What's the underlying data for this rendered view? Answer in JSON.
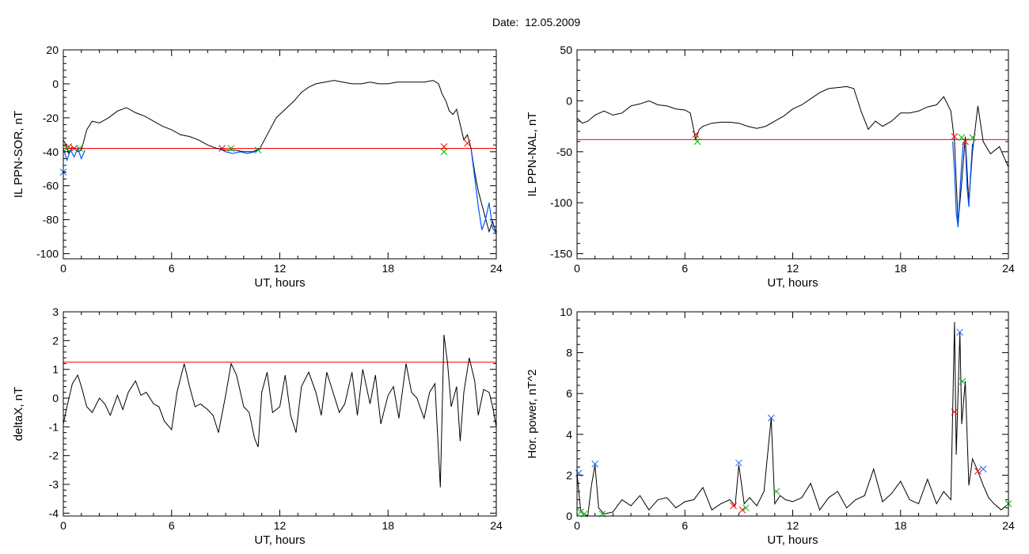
{
  "figure": {
    "title": "Date:  12.05.2009"
  },
  "colors": {
    "axis": "#000000",
    "trace": "#000000",
    "threshold": "#ff0000",
    "highlight": "#0055ff",
    "marker_red": "#ff0000",
    "marker_green": "#00bb00",
    "marker_blue": "#1a66ff"
  },
  "chart_data": [
    {
      "id": "ppn-sor",
      "type": "line",
      "title": "",
      "xlabel": "UT, hours",
      "ylabel": "IL PPN-SOR, nT",
      "xlim": [
        0,
        24
      ],
      "ylim": [
        -103,
        20
      ],
      "xticks": [
        0,
        6,
        12,
        18,
        24
      ],
      "yticks": [
        20,
        0,
        -20,
        -40,
        -60,
        -80,
        -100
      ],
      "grid": false,
      "threshold": -38,
      "series": [
        {
          "x": [
            0,
            0.15,
            0.3,
            0.5,
            0.8,
            1.0,
            1.3,
            1.6,
            2.0,
            2.5,
            3.0,
            3.5,
            4.0,
            4.5,
            5.0,
            5.5,
            6.0,
            6.5,
            7.0,
            7.5,
            8.0,
            8.5,
            9.0,
            9.5,
            10.0,
            10.5,
            10.9,
            11.3,
            11.8,
            12.3,
            12.8,
            13.2,
            13.6,
            14.0,
            14.5,
            15.0,
            15.5,
            16.0,
            16.5,
            17.0,
            17.5,
            18.0,
            18.5,
            19.0,
            19.5,
            20.0,
            20.5,
            20.8,
            21.0,
            21.2,
            21.4,
            21.6,
            21.8,
            22.0,
            22.2,
            22.4,
            22.6,
            22.8,
            23.0,
            23.3,
            23.6,
            23.8,
            24.0
          ],
          "y": [
            -33,
            -36,
            -41,
            -37,
            -40,
            -39,
            -27,
            -22,
            -23,
            -20,
            -16,
            -14,
            -17,
            -19,
            -22,
            -25,
            -27,
            -30,
            -31,
            -33,
            -36,
            -38,
            -39,
            -39,
            -40,
            -40,
            -38,
            -30,
            -20,
            -15,
            -10,
            -5,
            -2,
            0,
            1,
            2,
            1,
            0,
            0,
            1,
            0,
            0,
            1,
            1,
            1,
            1,
            2,
            0,
            -6,
            -10,
            -16,
            -18,
            -15,
            -24,
            -33,
            -30,
            -38,
            -52,
            -63,
            -75,
            -87,
            -81,
            -88
          ]
        }
      ],
      "highlight_segments": [
        {
          "x": [
            0,
            0.2,
            0.4,
            0.6,
            0.8,
            1.0,
            1.2
          ],
          "y": [
            -38,
            -45,
            -39,
            -43,
            -38,
            -44,
            -39
          ]
        },
        {
          "x": [
            8.6,
            9.0,
            9.4,
            9.8,
            10.2,
            10.6,
            11.0
          ],
          "y": [
            -38,
            -40,
            -41,
            -40,
            -41,
            -40,
            -38
          ]
        },
        {
          "x": [
            22.6,
            22.8,
            23.0,
            23.2,
            23.4,
            23.6,
            23.8,
            24.0
          ],
          "y": [
            -38,
            -55,
            -72,
            -86,
            -80,
            -70,
            -85,
            -88
          ]
        }
      ],
      "markers": [
        {
          "x": 0.3,
          "y": -37,
          "color": "red"
        },
        {
          "x": 0.6,
          "y": -38,
          "color": "red"
        },
        {
          "x": 0.2,
          "y": -38,
          "color": "green"
        },
        {
          "x": 0.9,
          "y": -38,
          "color": "green"
        },
        {
          "x": 8.8,
          "y": -38,
          "color": "red"
        },
        {
          "x": 9.3,
          "y": -38,
          "color": "green"
        },
        {
          "x": 10.8,
          "y": -39,
          "color": "green"
        },
        {
          "x": 21.1,
          "y": -37,
          "color": "red"
        },
        {
          "x": 21.1,
          "y": -40,
          "color": "green"
        },
        {
          "x": 22.4,
          "y": -35,
          "color": "red"
        },
        {
          "x": 0.0,
          "y": -52,
          "color": "blue"
        }
      ]
    },
    {
      "id": "ppn-nal",
      "type": "line",
      "title": "",
      "xlabel": "UT, hours",
      "ylabel": "IL PPN-NAL, nT",
      "xlim": [
        0,
        24
      ],
      "ylim": [
        -155,
        50
      ],
      "xticks": [
        0,
        6,
        12,
        18,
        24
      ],
      "yticks": [
        50,
        0,
        -50,
        -100,
        -150
      ],
      "grid": false,
      "threshold": -38,
      "series": [
        {
          "x": [
            0,
            0.3,
            0.6,
            1.0,
            1.5,
            2.0,
            2.5,
            3.0,
            3.5,
            4.0,
            4.5,
            5.0,
            5.5,
            6.0,
            6.3,
            6.6,
            6.8,
            7.0,
            7.5,
            8.0,
            8.5,
            9.0,
            9.5,
            10.0,
            10.5,
            11.0,
            11.5,
            12.0,
            12.5,
            13.0,
            13.5,
            14.0,
            14.5,
            15.0,
            15.4,
            15.8,
            16.2,
            16.6,
            17.0,
            17.5,
            18.0,
            18.5,
            19.0,
            19.5,
            20.0,
            20.4,
            20.8,
            21.0,
            21.2,
            21.4,
            21.6,
            21.8,
            22.0,
            22.3,
            22.6,
            23.0,
            23.5,
            24.0
          ],
          "y": [
            -17,
            -22,
            -20,
            -14,
            -10,
            -14,
            -12,
            -5,
            -3,
            0,
            -4,
            -5,
            -8,
            -9,
            -12,
            -38,
            -28,
            -25,
            -22,
            -21,
            -21,
            -22,
            -25,
            -27,
            -25,
            -20,
            -15,
            -8,
            -4,
            2,
            8,
            12,
            13,
            14,
            12,
            -10,
            -28,
            -20,
            -25,
            -20,
            -12,
            -12,
            -10,
            -6,
            -4,
            4,
            -10,
            -40,
            -120,
            -80,
            -35,
            -100,
            -50,
            -5,
            -40,
            -52,
            -45,
            -65
          ]
        }
      ],
      "highlight_segments": [
        {
          "x": [
            20.9,
            21.0,
            21.1,
            21.2,
            21.3,
            21.4,
            21.5
          ],
          "y": [
            -40,
            -70,
            -110,
            -124,
            -90,
            -60,
            -40
          ]
        },
        {
          "x": [
            21.6,
            21.7,
            21.8,
            21.9,
            22.0
          ],
          "y": [
            -40,
            -85,
            -104,
            -70,
            -42
          ]
        }
      ],
      "markers": [
        {
          "x": 6.6,
          "y": -33,
          "color": "red"
        },
        {
          "x": 6.7,
          "y": -40,
          "color": "green"
        },
        {
          "x": 21.0,
          "y": -35,
          "color": "red"
        },
        {
          "x": 21.6,
          "y": -40,
          "color": "red"
        },
        {
          "x": 21.4,
          "y": -36,
          "color": "green"
        },
        {
          "x": 22.0,
          "y": -36,
          "color": "green"
        }
      ]
    },
    {
      "id": "deltax",
      "type": "line",
      "title": "",
      "xlabel": "UT, hours",
      "ylabel": "deltaX, nT",
      "xlim": [
        0,
        24
      ],
      "ylim": [
        -4.1,
        3
      ],
      "xticks": [
        0,
        6,
        12,
        18,
        24
      ],
      "yticks": [
        3,
        2,
        1,
        0,
        -1,
        -2,
        -3,
        -4
      ],
      "grid": false,
      "threshold": 1.25,
      "series": [
        {
          "x": [
            0,
            0.2,
            0.5,
            0.8,
            1.0,
            1.3,
            1.6,
            2.0,
            2.3,
            2.6,
            3.0,
            3.3,
            3.6,
            4.0,
            4.3,
            4.6,
            5.0,
            5.3,
            5.6,
            6.0,
            6.3,
            6.7,
            7.0,
            7.3,
            7.6,
            8.0,
            8.3,
            8.6,
            9.0,
            9.3,
            9.6,
            10.0,
            10.3,
            10.6,
            10.8,
            11.0,
            11.3,
            11.6,
            12.0,
            12.3,
            12.6,
            12.9,
            13.2,
            13.6,
            14.0,
            14.3,
            14.6,
            15.0,
            15.3,
            15.6,
            16.0,
            16.3,
            16.6,
            17.0,
            17.3,
            17.6,
            18.0,
            18.3,
            18.6,
            19.0,
            19.3,
            19.6,
            20.0,
            20.3,
            20.6,
            20.9,
            21.1,
            21.3,
            21.5,
            21.8,
            22.0,
            22.2,
            22.5,
            22.8,
            23.0,
            23.3,
            23.6,
            23.8,
            24.0
          ],
          "y": [
            -0.9,
            -0.3,
            0.5,
            0.8,
            0.4,
            -0.3,
            -0.5,
            0.0,
            -0.2,
            -0.6,
            0.1,
            -0.4,
            0.2,
            0.6,
            0.1,
            0.2,
            -0.2,
            -0.3,
            -0.8,
            -1.1,
            0.2,
            1.2,
            0.4,
            -0.3,
            -0.2,
            -0.4,
            -0.6,
            -1.2,
            0.1,
            1.2,
            0.8,
            -0.3,
            -0.5,
            -1.4,
            -1.7,
            0.2,
            0.9,
            -0.5,
            -0.3,
            0.8,
            -0.6,
            -1.2,
            0.4,
            0.9,
            0.2,
            -0.6,
            0.9,
            0.1,
            -0.5,
            -0.2,
            0.9,
            -0.6,
            1.0,
            -0.2,
            0.8,
            -0.9,
            0.1,
            0.4,
            -0.7,
            1.2,
            0.2,
            0.0,
            -0.7,
            0.2,
            0.5,
            -3.1,
            2.2,
            1.2,
            -0.3,
            0.4,
            -1.5,
            0.2,
            1.4,
            0.6,
            -0.6,
            0.3,
            0.2,
            -0.3,
            -1.0
          ]
        }
      ],
      "highlight_segments": [],
      "markers": []
    },
    {
      "id": "hor-power",
      "type": "line",
      "title": "",
      "xlabel": "UT, hours",
      "ylabel": "Hor. power, nT^2",
      "xlim": [
        0,
        24
      ],
      "ylim": [
        0,
        10
      ],
      "xticks": [
        0,
        6,
        12,
        18,
        24
      ],
      "yticks": [
        10,
        8,
        6,
        4,
        2,
        0
      ],
      "grid": false,
      "threshold": null,
      "series": [
        {
          "x": [
            0,
            0.2,
            0.4,
            0.6,
            0.8,
            1.0,
            1.2,
            1.5,
            2.0,
            2.5,
            3.0,
            3.5,
            4.0,
            4.5,
            5.0,
            5.5,
            6.0,
            6.5,
            7.0,
            7.5,
            8.0,
            8.5,
            8.8,
            9.0,
            9.3,
            9.6,
            10.0,
            10.4,
            10.8,
            11.0,
            11.3,
            11.6,
            12.0,
            12.5,
            13.0,
            13.5,
            14.0,
            14.5,
            15.0,
            15.5,
            16.0,
            16.5,
            17.0,
            17.5,
            18.0,
            18.5,
            19.0,
            19.5,
            20.0,
            20.4,
            20.8,
            21.0,
            21.1,
            21.3,
            21.4,
            21.6,
            21.8,
            22.0,
            22.3,
            22.6,
            22.9,
            23.2,
            23.6,
            24.0
          ],
          "y": [
            2.1,
            0.3,
            0.1,
            0.0,
            1.5,
            2.5,
            0.4,
            0.1,
            0.2,
            0.8,
            0.5,
            1.0,
            0.3,
            0.8,
            0.9,
            0.4,
            0.7,
            0.8,
            1.4,
            0.3,
            0.6,
            0.8,
            0.5,
            2.5,
            0.6,
            0.9,
            0.5,
            1.2,
            4.8,
            0.6,
            1.0,
            0.8,
            0.7,
            0.9,
            1.6,
            0.3,
            0.9,
            1.2,
            0.4,
            0.8,
            1.0,
            2.3,
            0.7,
            1.1,
            1.7,
            0.8,
            0.6,
            1.8,
            0.6,
            1.2,
            0.8,
            9.5,
            3.0,
            9.0,
            4.5,
            6.6,
            1.5,
            2.8,
            2.2,
            1.5,
            0.9,
            0.6,
            0.3,
            0.6
          ]
        }
      ],
      "highlight_segments": [],
      "markers": [
        {
          "x": 0.1,
          "y": 2.1,
          "color": "blue"
        },
        {
          "x": 0.2,
          "y": 0.2,
          "color": "green"
        },
        {
          "x": 0.4,
          "y": 0.1,
          "color": "green"
        },
        {
          "x": 1.0,
          "y": 2.55,
          "color": "blue"
        },
        {
          "x": 1.4,
          "y": 0.1,
          "color": "green"
        },
        {
          "x": 8.7,
          "y": 0.5,
          "color": "red"
        },
        {
          "x": 9.0,
          "y": 2.6,
          "color": "blue"
        },
        {
          "x": 9.2,
          "y": 0.3,
          "color": "red"
        },
        {
          "x": 9.4,
          "y": 0.4,
          "color": "green"
        },
        {
          "x": 10.8,
          "y": 4.8,
          "color": "blue"
        },
        {
          "x": 11.1,
          "y": 1.2,
          "color": "green"
        },
        {
          "x": 21.0,
          "y": 5.1,
          "color": "red"
        },
        {
          "x": 21.3,
          "y": 9.0,
          "color": "blue"
        },
        {
          "x": 21.45,
          "y": 6.6,
          "color": "green"
        },
        {
          "x": 22.3,
          "y": 2.2,
          "color": "red"
        },
        {
          "x": 22.6,
          "y": 2.3,
          "color": "blue"
        },
        {
          "x": 24.0,
          "y": 0.6,
          "color": "green"
        }
      ]
    }
  ]
}
